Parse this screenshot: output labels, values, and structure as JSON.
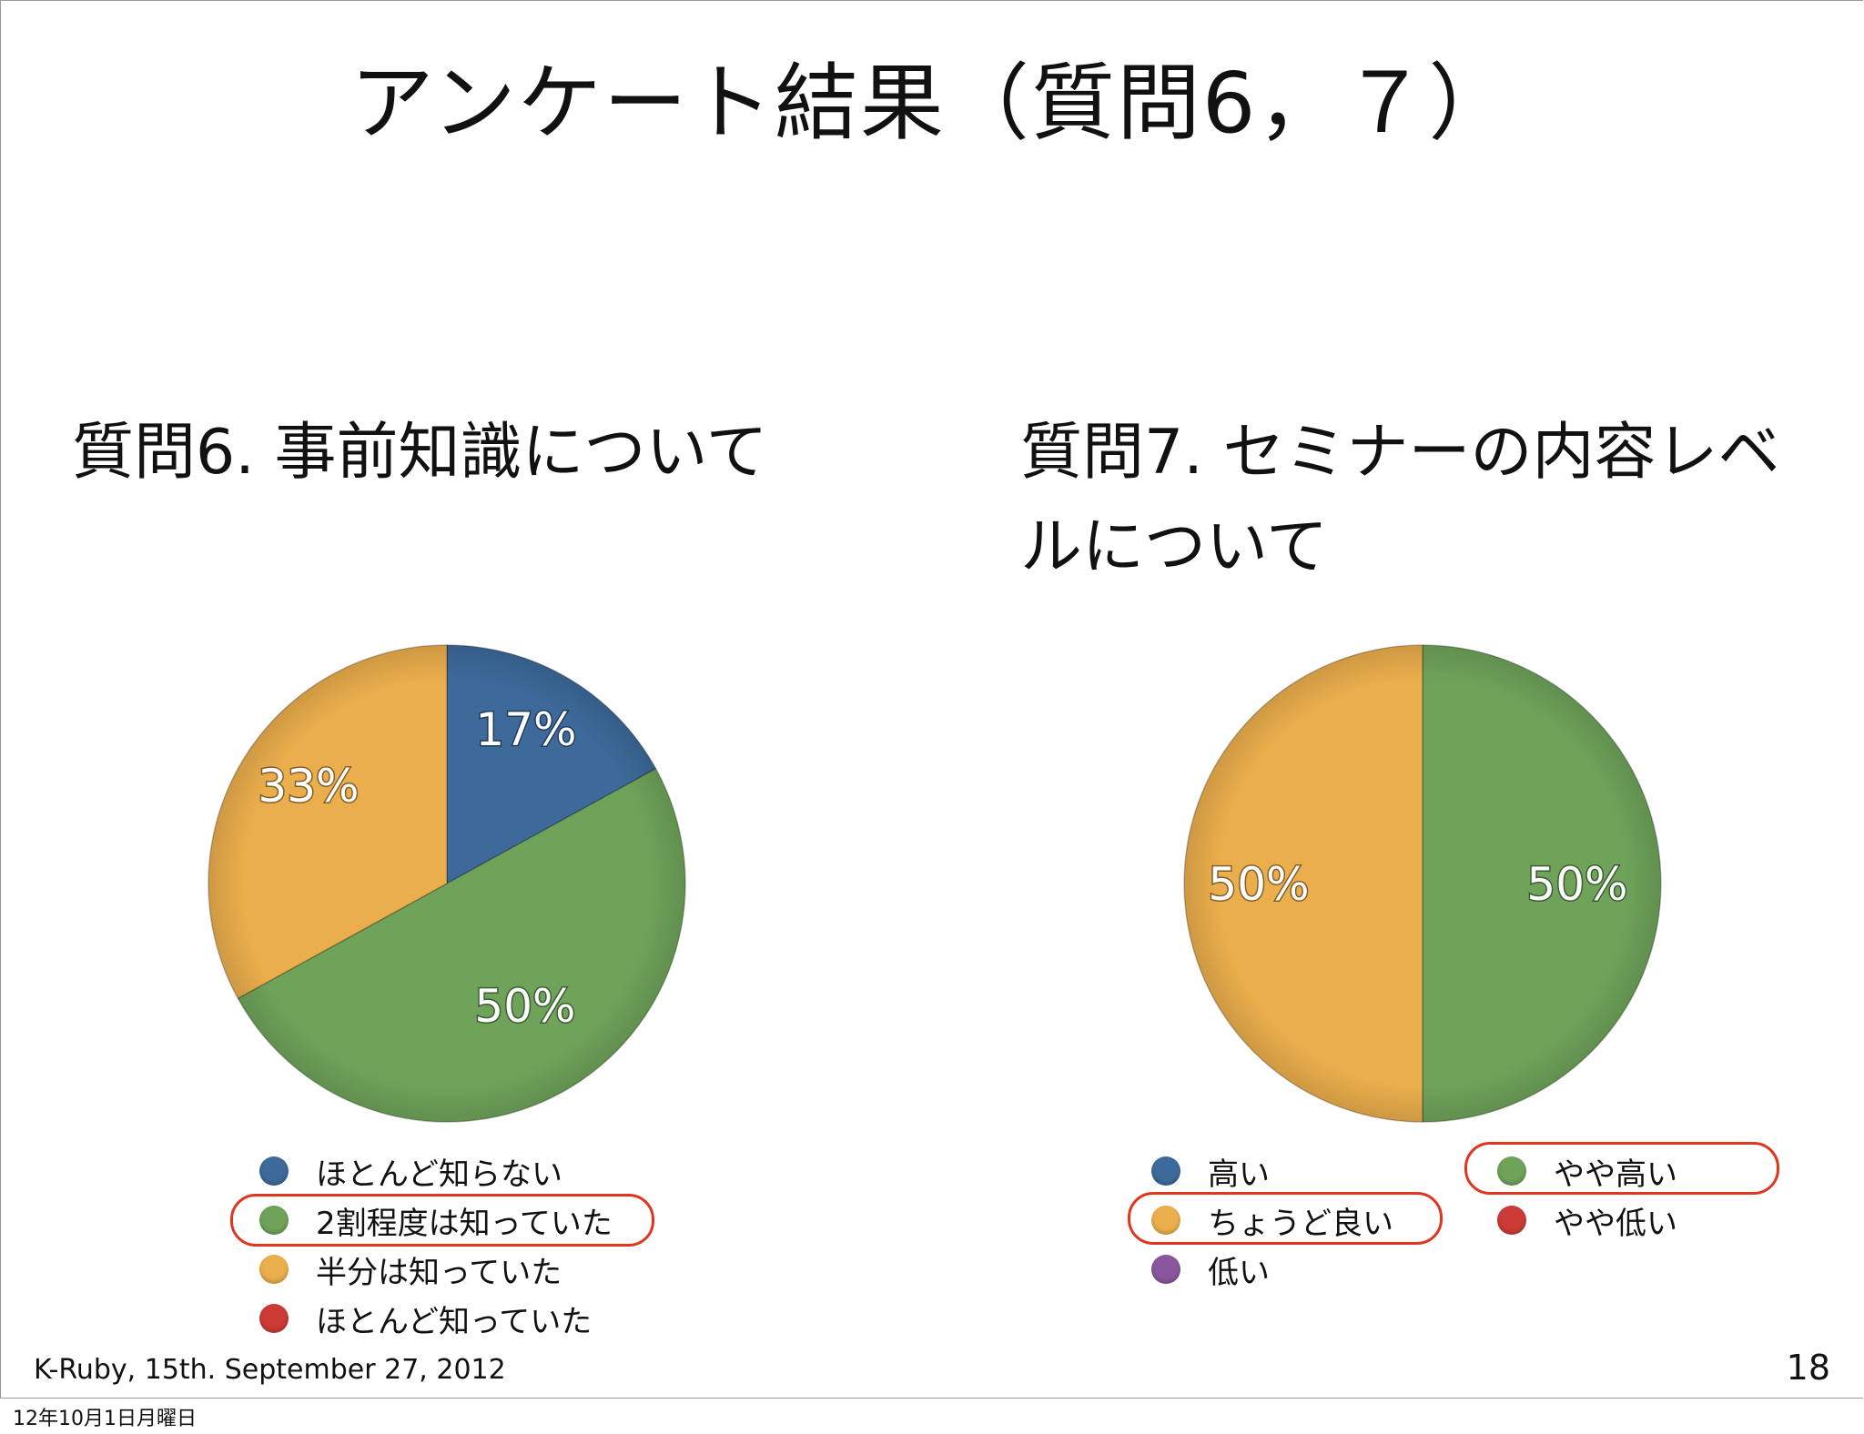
{
  "slide": {
    "title": "アンケート結果（質問6，７）",
    "footer": "K-Ruby, 15th. September 27, 2012",
    "page_number": "18"
  },
  "timestamp": "12年10月1日月曜日",
  "chart_data": [
    {
      "type": "pie",
      "title": "質問6. 事前知識について",
      "slices": [
        {
          "label": "ほとんど知らない",
          "value": 17,
          "color": "#3d6a9b"
        },
        {
          "label": "2割程度は知っていた",
          "value": 50,
          "color": "#6fa35a"
        },
        {
          "label": "半分は知っていた",
          "value": 33,
          "color": "#ebae4c"
        },
        {
          "label": "ほとんど知っていた",
          "value": 0,
          "color": "#cc3b35"
        }
      ],
      "data_labels": [
        "17%",
        "50%",
        "33%"
      ],
      "highlighted_legend": "2割程度は知っていた"
    },
    {
      "type": "pie",
      "title": "質問7. セミナーの内容レベルについて",
      "slices": [
        {
          "label": "高い",
          "value": 0,
          "color": "#3d6a9b"
        },
        {
          "label": "やや高い",
          "value": 50,
          "color": "#6fa35a"
        },
        {
          "label": "ちょうど良い",
          "value": 50,
          "color": "#ebae4c"
        },
        {
          "label": "やや低い",
          "value": 0,
          "color": "#cc3b35"
        },
        {
          "label": "低い",
          "value": 0,
          "color": "#8a579e"
        }
      ],
      "data_labels": [
        "50%",
        "50%"
      ],
      "highlighted_legend": [
        "やや高い",
        "ちょうど良い"
      ]
    }
  ]
}
